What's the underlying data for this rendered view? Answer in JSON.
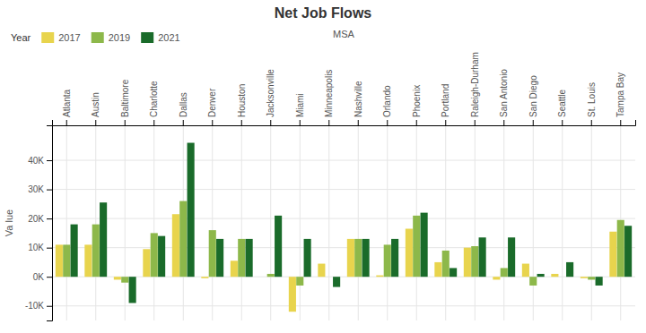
{
  "chart_data": {
    "type": "bar",
    "title": "Net Job Flows",
    "x_label": "MSA",
    "y_label": "Va lue",
    "legend_title": "Year",
    "categories": [
      "Atlanta",
      "Austin",
      "Baltimore",
      "Charlotte",
      "Dallas",
      "Denver",
      "Houston",
      "Jacksonville",
      "Miami",
      "Minneapolis",
      "Nashville",
      "Orlando",
      "Phoenix",
      "Portland",
      "Raleigh-Durham",
      "San Antonio",
      "San Diego",
      "Seattle",
      "St. Louis",
      "Tampa Bay"
    ],
    "series": [
      {
        "name": "2017",
        "color": "#E8D44D",
        "values": [
          11000,
          11000,
          -1000,
          9500,
          21500,
          -500,
          5500,
          0,
          -12000,
          4500,
          13000,
          500,
          16500,
          5000,
          10000,
          -1000,
          4500,
          1000,
          -500,
          15500
        ]
      },
      {
        "name": "2019",
        "color": "#8DB84A",
        "values": [
          11000,
          18000,
          -2000,
          15000,
          26000,
          16000,
          13000,
          1000,
          -3000,
          0,
          13000,
          11000,
          21000,
          9000,
          10500,
          3000,
          -3000,
          0,
          -1000,
          19500
        ]
      },
      {
        "name": "2021",
        "color": "#1A6B2A",
        "values": [
          18000,
          25500,
          -9000,
          14000,
          46000,
          13000,
          13000,
          21000,
          13000,
          -3500,
          13000,
          13000,
          22000,
          3000,
          13500,
          13500,
          1000,
          5000,
          -3000,
          17500
        ]
      }
    ],
    "ylim": [
      -15000,
      52000
    ],
    "yticks": [
      {
        "value": -10000,
        "label": "-10K"
      },
      {
        "value": 0,
        "label": "0K"
      },
      {
        "value": 10000,
        "label": "10K"
      },
      {
        "value": 20000,
        "label": "20K"
      },
      {
        "value": 30000,
        "label": "30K"
      },
      {
        "value": 40000,
        "label": "40K"
      }
    ],
    "grid": true,
    "legend": "top-left"
  }
}
